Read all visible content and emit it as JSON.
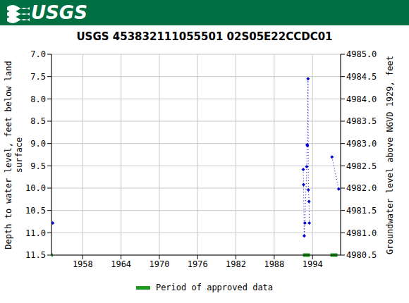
{
  "header": "USGS",
  "chart_data": {
    "type": "line",
    "title": "USGS 453832111055501 02S05E22CCDC01",
    "y_label": "Depth to water level, feet below land surface",
    "y2_label": "Groundwater level above NGVD 1929, feet",
    "x": [
      1953.3,
      1975,
      1992.55,
      1992.6,
      1992.7,
      1992.8,
      1993.1,
      1993.15,
      1993.2,
      1993.3,
      1993.35,
      1993.45,
      1993.5,
      1995,
      1997.05,
      1998.1
    ],
    "values": [
      10.78,
      null,
      9.58,
      9.92,
      11.07,
      10.78,
      9.52,
      9.03,
      9.05,
      7.55,
      10.04,
      10.3,
      10.78,
      null,
      9.3,
      10.02
    ],
    "color": "#0000cc",
    "marker": "diamond",
    "line_style": "dotted",
    "xlim": [
      1953.1,
      1998.4
    ],
    "xticks": [
      1958,
      1964,
      1970,
      1976,
      1982,
      1988,
      1994
    ],
    "ylim": [
      11.5,
      7.0
    ],
    "yticks": [
      {
        "value": 7,
        "label": "7.0"
      },
      {
        "value": 7.5,
        "label": "7.5"
      },
      {
        "value": 8,
        "label": "8.0"
      },
      {
        "value": 8.5,
        "label": "8.5"
      },
      {
        "value": 9,
        "label": "9.0"
      },
      {
        "value": 9.5,
        "label": "9.5"
      },
      {
        "value": 10,
        "label": "10.0"
      },
      {
        "value": 10.5,
        "label": "10.5"
      },
      {
        "value": 11,
        "label": "11.0"
      },
      {
        "value": 11.5,
        "label": "11.5"
      }
    ],
    "y2lim": [
      4980.5,
      4985.0
    ],
    "y2ticks": [
      {
        "value": 4980.5,
        "label": "4980.5"
      },
      {
        "value": 4981,
        "label": "4981.0"
      },
      {
        "value": 4981.5,
        "label": "4981.5"
      },
      {
        "value": 4982,
        "label": "4982.0"
      },
      {
        "value": 4982.5,
        "label": "4982.5"
      },
      {
        "value": 4983,
        "label": "4983.0"
      },
      {
        "value": 4983.5,
        "label": "4983.5"
      },
      {
        "value": 4984,
        "label": "4984.0"
      },
      {
        "value": 4984.5,
        "label": "4984.5"
      },
      {
        "value": 4985,
        "label": "4985.0"
      }
    ],
    "grid": true,
    "approved_periods": {
      "label": "Period of approved data",
      "color": "#1e9b1e",
      "ranges": [
        [
          1953.1,
          1953.3
        ],
        [
          1992.5,
          1993.6
        ],
        [
          1996.8,
          1997.9
        ]
      ]
    }
  }
}
